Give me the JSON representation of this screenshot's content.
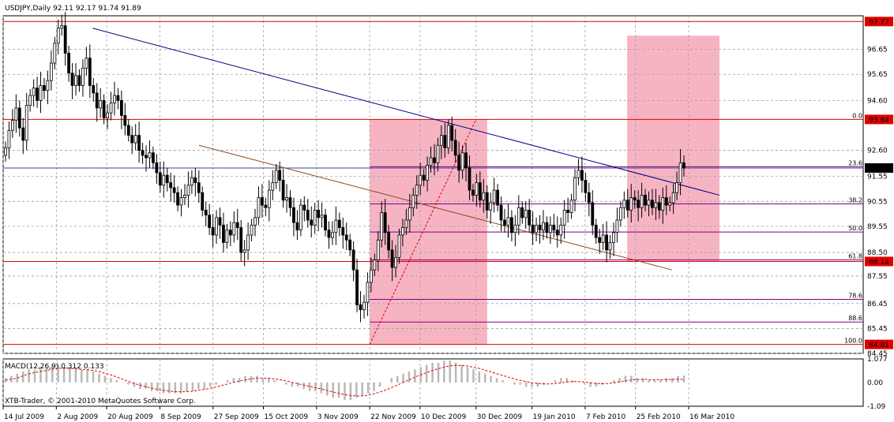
{
  "chart_data": [
    {
      "type": "candlestick",
      "title": "USDJPY,Daily  92.11 92.17 91.74 91.89",
      "symbol": "USDJPY",
      "timeframe": "Daily",
      "last_bar": {
        "open": 92.11,
        "high": 92.17,
        "low": 91.74,
        "close": 91.89
      },
      "ylim": [
        84.45,
        98.0
      ],
      "y_ticks": [
        "97.77",
        "96.65",
        "95.65",
        "94.60",
        "93.84",
        "92.60",
        "91.89",
        "91.55",
        "90.55",
        "89.55",
        "88.50",
        "88.14",
        "87.55",
        "86.45",
        "85.45",
        "84.81",
        "84.45"
      ],
      "price_badges": [
        {
          "label": "97.77",
          "value": 97.77,
          "color": "#e00000"
        },
        {
          "label": "93.84",
          "value": 93.84,
          "color": "#e00000"
        },
        {
          "label": "91.89",
          "value": 91.89,
          "color": "#000000"
        },
        {
          "label": "88.14",
          "value": 88.14,
          "color": "#e00000"
        },
        {
          "label": "84.81",
          "value": 84.81,
          "color": "#e00000"
        }
      ],
      "x_ticks": [
        "14 Jul 2009",
        "2 Aug 2009",
        "20 Aug 2009",
        "8 Sep 2009",
        "27 Sep 2009",
        "15 Oct 2009",
        "3 Nov 2009",
        "22 Nov 2009",
        "10 Dec 2009",
        "30 Dec 2009",
        "19 Jan 2010",
        "7 Feb 2010",
        "25 Feb 2010",
        "16 Mar 2010"
      ],
      "horizontal_levels": [
        {
          "value": 97.77,
          "color": "#e00000"
        },
        {
          "value": 93.84,
          "color": "#e00000"
        },
        {
          "value": 91.89,
          "color": "#4040a0"
        },
        {
          "value": 88.14,
          "color": "#e00000"
        },
        {
          "value": 84.81,
          "color": "#e00000"
        }
      ],
      "fibonacci": [
        {
          "label": "0.0",
          "value": 93.84
        },
        {
          "label": "23.6",
          "value": 91.94
        },
        {
          "label": "38.2",
          "value": 90.45
        },
        {
          "label": "50.0",
          "value": 89.32
        },
        {
          "label": "61.8",
          "value": 88.2
        },
        {
          "label": "78.6",
          "value": 86.62
        },
        {
          "label": "88.6",
          "value": 85.71
        },
        {
          "label": "100.0",
          "value": 84.81
        }
      ],
      "highlight_zones": [
        {
          "x_start": "22 Nov 2009",
          "x_end": "3 Jan 2010",
          "y_range": [
            84.81,
            93.84
          ],
          "color": "#f4a7b9"
        },
        {
          "x_start": "22 Feb 2010",
          "x_end": "27 Mar 2010",
          "y_range": [
            88.14,
            97.2
          ],
          "color": "#f4a7b9"
        }
      ],
      "trendlines": [
        {
          "color": "#000080",
          "from": {
            "x": "15 Aug 2009",
            "y": 97.5
          },
          "to": {
            "x": "27 Mar 2010",
            "y": 90.8
          }
        },
        {
          "color": "#8b4513",
          "from": {
            "x": "22 Sep 2009",
            "y": 92.8
          },
          "to": {
            "x": "10 Mar 2010",
            "y": 87.8
          }
        }
      ],
      "closes": [
        92.7,
        93.4,
        93.8,
        94.3,
        93.5,
        93.0,
        94.4,
        94.8,
        95.1,
        94.6,
        95.2,
        95.0,
        95.4,
        96.1,
        96.9,
        97.5,
        97.6,
        96.5,
        95.7,
        95.2,
        95.6,
        95.2,
        95.9,
        96.3,
        95.2,
        94.9,
        94.3,
        94.6,
        93.9,
        94.1,
        94.5,
        94.8,
        94.6,
        94.0,
        93.6,
        93.2,
        92.9,
        93.2,
        92.6,
        92.4,
        92.3,
        92.5,
        92.1,
        91.7,
        91.2,
        91.6,
        91.3,
        91.1,
        90.9,
        90.4,
        90.7,
        90.8,
        91.2,
        91.5,
        91.3,
        90.9,
        90.2,
        90.0,
        89.5,
        89.2,
        89.9,
        89.6,
        88.9,
        89.4,
        89.2,
        89.7,
        89.5,
        88.5,
        88.6,
        89.2,
        89.6,
        89.9,
        90.7,
        90.4,
        90.3,
        91.0,
        91.3,
        91.8,
        91.4,
        90.6,
        90.7,
        90.3,
        89.7,
        89.4,
        90.4,
        90.2,
        89.8,
        89.6,
        90.2,
        89.9,
        90.0,
        89.4,
        89.1,
        89.3,
        89.8,
        89.5,
        89.2,
        89.0,
        88.6,
        87.8,
        86.4,
        86.2,
        86.5,
        87.3,
        87.8,
        88.2,
        89.0,
        90.1,
        89.3,
        88.6,
        87.9,
        88.3,
        89.2,
        89.5,
        89.8,
        90.3,
        90.8,
        91.2,
        91.6,
        91.4,
        92.0,
        92.3,
        92.1,
        92.8,
        93.2,
        92.7,
        93.6,
        93.0,
        92.4,
        91.8,
        92.5,
        91.9,
        91.0,
        90.8,
        91.3,
        90.6,
        90.9,
        90.2,
        90.5,
        91.0,
        90.4,
        89.8,
        89.6,
        89.9,
        89.3,
        89.6,
        90.3,
        89.9,
        90.2,
        89.6,
        89.3,
        89.6,
        89.4,
        89.7,
        89.3,
        89.6,
        89.4,
        89.2,
        89.6,
        90.2,
        90.1,
        90.6,
        91.5,
        91.8,
        91.4,
        90.9,
        90.5,
        89.6,
        89.1,
        88.9,
        89.2,
        88.6,
        88.9,
        89.3,
        89.8,
        90.3,
        90.6,
        90.2,
        90.7,
        90.6,
        90.3,
        90.8,
        90.4,
        90.6,
        90.3,
        90.5,
        90.2,
        90.7,
        90.4,
        90.5,
        90.9,
        91.3,
        92.1,
        91.89
      ]
    },
    {
      "type": "macd",
      "title": "MACD(12,26,9)  0.312  0.133",
      "params": "12,26,9",
      "macd_value": 0.312,
      "signal_value": 0.133,
      "ylim": [
        -1.09,
        1.077
      ],
      "y_ticks": [
        "1.077",
        "0.00",
        "-1.09"
      ],
      "watermark": "XTB-Trader, © 2001-2010 MetaQuotes Software Corp.",
      "histogram": [
        0.2,
        0.3,
        0.4,
        0.5,
        0.6,
        0.6,
        0.7,
        0.7,
        0.8,
        0.8,
        0.7,
        0.7,
        0.6,
        0.6,
        0.6,
        0.5,
        0.4,
        0.3,
        0.2,
        0.1,
        0.0,
        -0.1,
        -0.2,
        -0.3,
        -0.3,
        -0.4,
        -0.4,
        -0.5,
        -0.5,
        -0.5,
        -0.5,
        -0.4,
        -0.4,
        -0.3,
        -0.3,
        -0.2,
        -0.1,
        0.0,
        0.1,
        0.2,
        0.2,
        0.3,
        0.3,
        0.3,
        0.2,
        0.2,
        0.1,
        0.0,
        -0.1,
        -0.2,
        -0.2,
        -0.3,
        -0.4,
        -0.4,
        -0.5,
        -0.6,
        -0.7,
        -0.7,
        -0.8,
        -0.8,
        -0.7,
        -0.6,
        -0.5,
        -0.4,
        -0.2,
        0.0,
        0.2,
        0.3,
        0.4,
        0.5,
        0.6,
        0.7,
        0.8,
        0.9,
        0.9,
        1.0,
        1.0,
        0.9,
        0.8,
        0.7,
        0.6,
        0.5,
        0.4,
        0.3,
        0.2,
        0.1,
        0.0,
        -0.1,
        -0.1,
        -0.2,
        -0.2,
        -0.2,
        -0.1,
        0.0,
        0.1,
        0.2,
        0.2,
        0.1,
        0.0,
        -0.1,
        -0.2,
        -0.2,
        -0.1,
        0.0,
        0.1,
        0.2,
        0.3,
        0.3,
        0.2,
        0.2,
        0.1,
        0.1,
        0.1,
        0.2,
        0.2,
        0.3,
        0.31
      ],
      "signal": [
        0.1,
        0.15,
        0.2,
        0.3,
        0.4,
        0.45,
        0.5,
        0.55,
        0.6,
        0.65,
        0.65,
        0.65,
        0.62,
        0.6,
        0.58,
        0.55,
        0.5,
        0.42,
        0.35,
        0.25,
        0.15,
        0.05,
        -0.05,
        -0.12,
        -0.2,
        -0.26,
        -0.32,
        -0.36,
        -0.4,
        -0.42,
        -0.43,
        -0.42,
        -0.4,
        -0.36,
        -0.32,
        -0.27,
        -0.21,
        -0.14,
        -0.07,
        0.0,
        0.06,
        0.12,
        0.16,
        0.2,
        0.2,
        0.19,
        0.16,
        0.12,
        0.07,
        0.0,
        -0.06,
        -0.12,
        -0.18,
        -0.24,
        -0.3,
        -0.37,
        -0.44,
        -0.5,
        -0.56,
        -0.6,
        -0.62,
        -0.62,
        -0.58,
        -0.52,
        -0.44,
        -0.35,
        -0.24,
        -0.12,
        0.0,
        0.12,
        0.24,
        0.35,
        0.45,
        0.55,
        0.63,
        0.7,
        0.76,
        0.78,
        0.78,
        0.75,
        0.7,
        0.64,
        0.56,
        0.48,
        0.4,
        0.32,
        0.24,
        0.16,
        0.1,
        0.04,
        -0.01,
        -0.05,
        -0.07,
        -0.07,
        -0.05,
        -0.02,
        0.02,
        0.04,
        0.04,
        0.02,
        -0.02,
        -0.05,
        -0.06,
        -0.05,
        -0.02,
        0.02,
        0.07,
        0.11,
        0.13,
        0.14,
        0.13,
        0.12,
        0.12,
        0.13,
        0.14,
        0.15,
        0.133
      ]
    }
  ]
}
